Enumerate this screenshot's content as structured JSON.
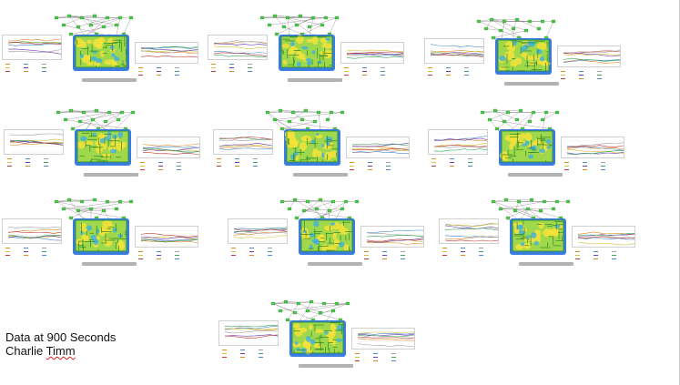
{
  "caption": {
    "line1": "Data at 900 Seconds",
    "line2_first": "Charlie",
    "line2_last": "Timm"
  },
  "colors": {
    "flow_node": "#4cc94c",
    "maze_walls": "#2a8a2a",
    "heat_hot": "#f4e23a",
    "heat_warm": "#9fd84a",
    "heat_cold": "#3a7de0",
    "scrollbar": "#b3b3b3"
  },
  "icons": [
    "flow-node-icon",
    "maze-heatmap-icon"
  ],
  "panels": [
    {
      "id": "p1"
    },
    {
      "id": "p2"
    },
    {
      "id": "p3"
    },
    {
      "id": "p4"
    },
    {
      "id": "p5"
    },
    {
      "id": "p6"
    },
    {
      "id": "p7"
    },
    {
      "id": "p8"
    },
    {
      "id": "p9"
    },
    {
      "id": "p10"
    }
  ]
}
